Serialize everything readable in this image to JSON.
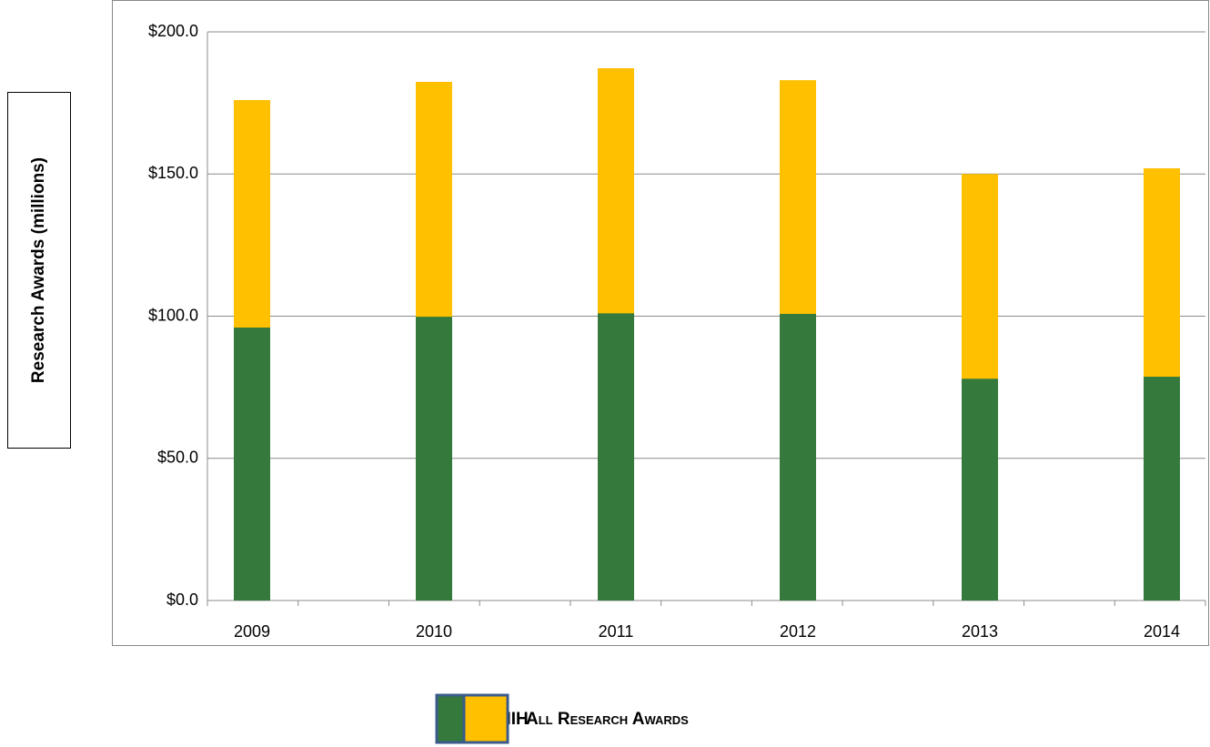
{
  "chart_data": {
    "type": "bar",
    "overlap": true,
    "y_label": "Research Awards (millions)",
    "categories": [
      "2009",
      "2010",
      "2011",
      "2012",
      "2013",
      "2014"
    ],
    "series": [
      {
        "name": "All Research Awards",
        "color": "#ffc000",
        "values": [
          176,
          182.4,
          187.2,
          183,
          150,
          152
        ]
      },
      {
        "name": "NIH",
        "color": "#357a3c",
        "values": [
          96,
          99.8,
          101,
          100.8,
          78,
          78.7
        ]
      }
    ],
    "ylim": [
      0,
      200
    ],
    "yticks": [
      {
        "value": 0,
        "label": "$0.0"
      },
      {
        "value": 50,
        "label": "$50.0"
      },
      {
        "value": 100,
        "label": "$100.0"
      },
      {
        "value": 150,
        "label": "$150.0"
      },
      {
        "value": 200,
        "label": "$200.0"
      }
    ],
    "grid": true,
    "legend": "bottom"
  }
}
